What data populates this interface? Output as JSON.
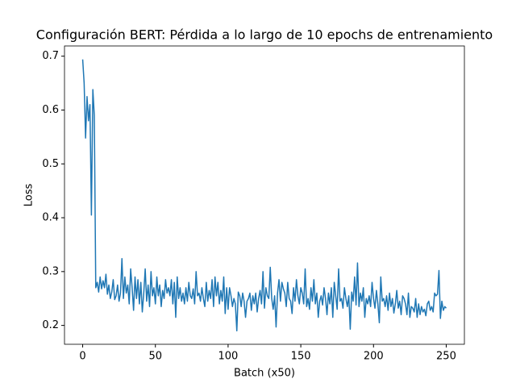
{
  "chart_data": {
    "type": "line",
    "title": "Configuración BERT: Pérdida a lo largo de 10 epochs de entrenamiento",
    "xlabel": "Batch (x50)",
    "ylabel": "Loss",
    "color": "#1f77b4",
    "xlim": [
      -12.5,
      262.5
    ],
    "xticks": [
      0,
      50,
      100,
      150,
      200,
      250
    ],
    "ylim": [
      0.165,
      0.719
    ],
    "yticks": [
      0.2,
      0.3,
      0.4,
      0.5,
      0.6,
      0.7
    ],
    "values": [
      0.694,
      0.65,
      0.548,
      0.625,
      0.58,
      0.61,
      0.405,
      0.638,
      0.59,
      0.27,
      0.28,
      0.262,
      0.29,
      0.268,
      0.283,
      0.27,
      0.295,
      0.258,
      0.275,
      0.25,
      0.262,
      0.285,
      0.248,
      0.255,
      0.275,
      0.245,
      0.26,
      0.324,
      0.25,
      0.29,
      0.26,
      0.275,
      0.24,
      0.305,
      0.27,
      0.228,
      0.29,
      0.25,
      0.285,
      0.24,
      0.28,
      0.225,
      0.26,
      0.305,
      0.245,
      0.275,
      0.235,
      0.3,
      0.255,
      0.27,
      0.24,
      0.29,
      0.255,
      0.275,
      0.235,
      0.265,
      0.25,
      0.285,
      0.26,
      0.27,
      0.255,
      0.285,
      0.24,
      0.28,
      0.215,
      0.29,
      0.25,
      0.27,
      0.245,
      0.26,
      0.24,
      0.27,
      0.245,
      0.28,
      0.255,
      0.25,
      0.268,
      0.24,
      0.3,
      0.255,
      0.26,
      0.245,
      0.27,
      0.25,
      0.235,
      0.28,
      0.245,
      0.265,
      0.25,
      0.285,
      0.235,
      0.29,
      0.255,
      0.28,
      0.24,
      0.265,
      0.245,
      0.29,
      0.222,
      0.27,
      0.23,
      0.27,
      0.255,
      0.235,
      0.25,
      0.24,
      0.19,
      0.262,
      0.255,
      0.235,
      0.26,
      0.245,
      0.215,
      0.245,
      0.25,
      0.26,
      0.228,
      0.255,
      0.24,
      0.26,
      0.225,
      0.25,
      0.265,
      0.24,
      0.3,
      0.232,
      0.27,
      0.255,
      0.25,
      0.308,
      0.25,
      0.23,
      0.255,
      0.197,
      0.26,
      0.285,
      0.245,
      0.28,
      0.268,
      0.26,
      0.235,
      0.28,
      0.25,
      0.245,
      0.222,
      0.27,
      0.245,
      0.285,
      0.255,
      0.24,
      0.27,
      0.26,
      0.24,
      0.305,
      0.235,
      0.25,
      0.23,
      0.27,
      0.245,
      0.285,
      0.24,
      0.26,
      0.215,
      0.245,
      0.255,
      0.238,
      0.27,
      0.25,
      0.22,
      0.26,
      0.24,
      0.27,
      0.215,
      0.28,
      0.255,
      0.23,
      0.305,
      0.245,
      0.25,
      0.232,
      0.27,
      0.25,
      0.235,
      0.255,
      0.193,
      0.262,
      0.245,
      0.29,
      0.238,
      0.316,
      0.235,
      0.26,
      0.245,
      0.27,
      0.215,
      0.25,
      0.24,
      0.255,
      0.235,
      0.28,
      0.25,
      0.232,
      0.265,
      0.24,
      0.205,
      0.29,
      0.245,
      0.25,
      0.235,
      0.255,
      0.228,
      0.26,
      0.235,
      0.25,
      0.223,
      0.24,
      0.265,
      0.232,
      0.245,
      0.22,
      0.255,
      0.25,
      0.24,
      0.22,
      0.26,
      0.215,
      0.235,
      0.232,
      0.225,
      0.25,
      0.215,
      0.24,
      0.22,
      0.235,
      0.225,
      0.23,
      0.218,
      0.24,
      0.245,
      0.228,
      0.235,
      0.225,
      0.26,
      0.255,
      0.258,
      0.302,
      0.213,
      0.245,
      0.228,
      0.235,
      0.232
    ]
  }
}
